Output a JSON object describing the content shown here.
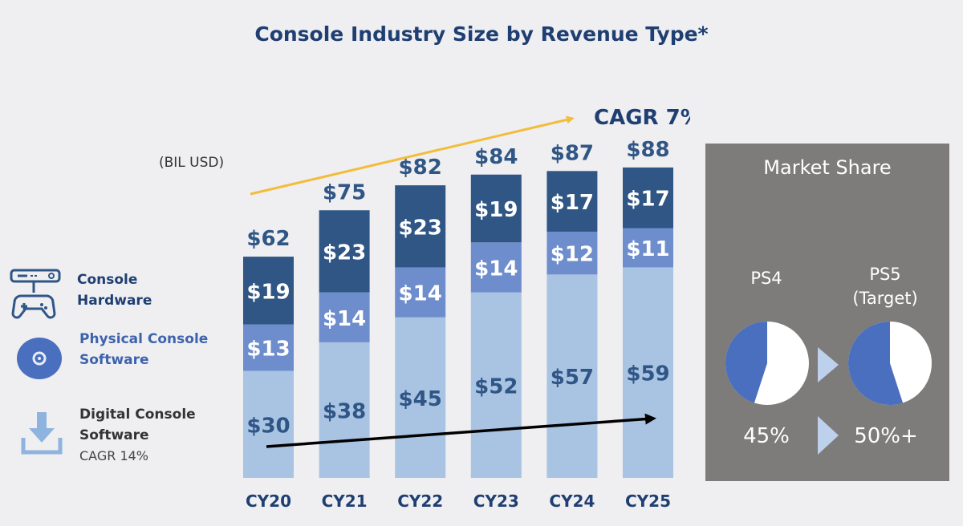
{
  "chart_data": {
    "type": "bar",
    "stacked": true,
    "title": "Console Industry Size by Revenue Type*",
    "unit_label": "(BIL USD)",
    "categories": [
      "CY20",
      "CY21",
      "CY22",
      "CY23",
      "CY24",
      "CY25"
    ],
    "series": [
      {
        "name": "Digital Console Software",
        "values": [
          30,
          38,
          45,
          52,
          57,
          59
        ],
        "color": "#a9c3e3"
      },
      {
        "name": "Physical Console Software",
        "values": [
          13,
          14,
          14,
          14,
          12,
          11
        ],
        "color": "#6e8dcc"
      },
      {
        "name": "Console Hardware",
        "values": [
          19,
          23,
          23,
          19,
          17,
          17
        ],
        "color": "#2f5685"
      }
    ],
    "segment_labels": [
      [
        "$30",
        "$38",
        "$45",
        "$52",
        "$57",
        "$59"
      ],
      [
        "$13",
        "$14",
        "$14",
        "$14",
        "$12",
        "$11"
      ],
      [
        "$19",
        "$23",
        "$23",
        "$19",
        "$17",
        "$17"
      ]
    ],
    "totals": [
      "$62",
      "$75",
      "$82",
      "$84",
      "$87",
      "$88"
    ],
    "total_values": [
      62,
      75,
      82,
      84,
      87,
      88
    ],
    "ylim": [
      0,
      100
    ],
    "annotation": "CAGR 7%",
    "legend": [
      {
        "label": "Console Hardware",
        "sub": "",
        "icon": "console-gamepad-icon",
        "color": "#1f3f72"
      },
      {
        "label": "Physical Console Software",
        "sub": "",
        "icon": "disc-icon",
        "color": "#3e63ad"
      },
      {
        "label": "Digital Console Software",
        "sub": "CAGR 14%",
        "icon": "download-icon",
        "color": "#333333"
      }
    ]
  },
  "market_share": {
    "title": "Market Share",
    "items": [
      {
        "label": "PS4",
        "label2": "",
        "value": "45%",
        "share": 0.45
      },
      {
        "label": "PS5",
        "label2": "(Target)",
        "value": "50%+",
        "share": 0.55
      }
    ]
  },
  "colors": {
    "title": "#1f3f72",
    "arrow_gold": "#f2bd3b",
    "arrow_black": "#000000",
    "pie_fill": "#4a6fbf",
    "panel": "#7e7b7b"
  }
}
